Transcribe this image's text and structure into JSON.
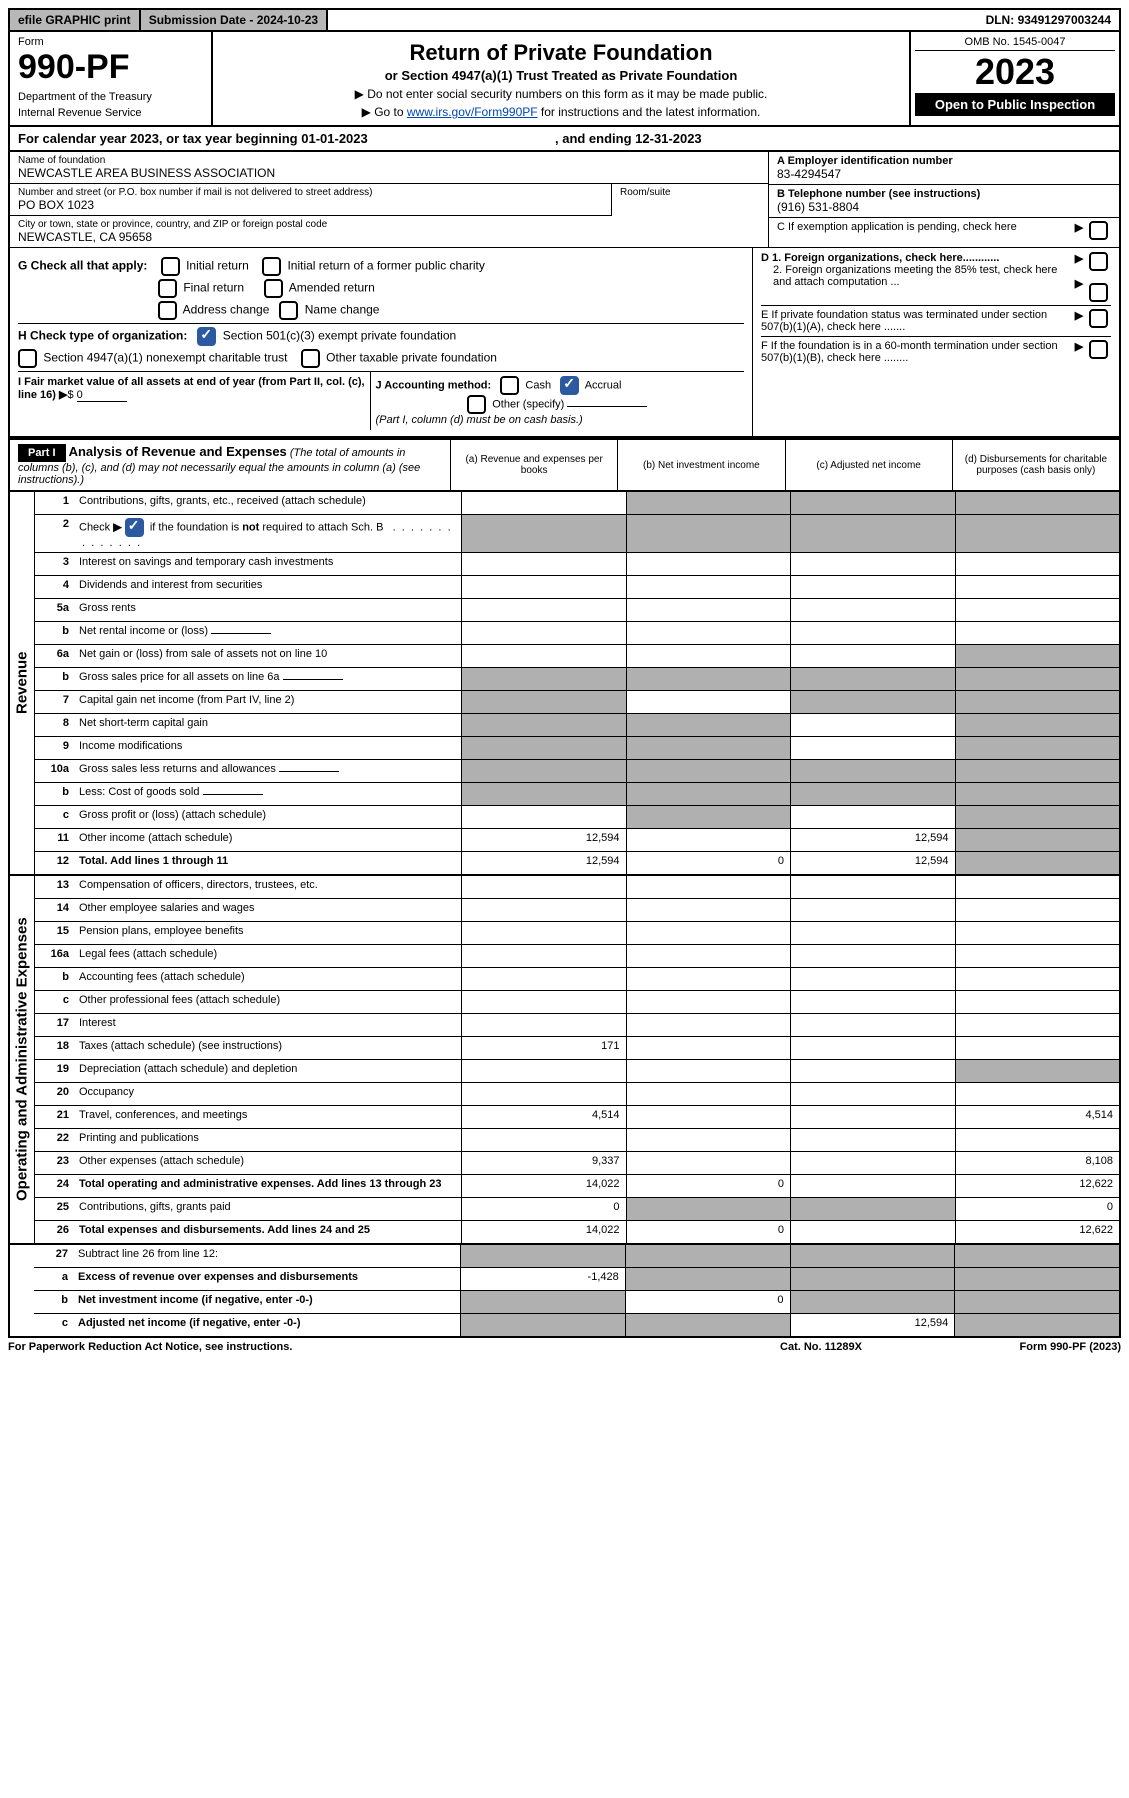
{
  "topbar": {
    "efile": "efile GRAPHIC print",
    "subdate_label": "Submission Date - ",
    "subdate": "2024-10-23",
    "dln_label": "DLN: ",
    "dln": "93491297003244"
  },
  "header": {
    "form": "Form",
    "form_num": "990-PF",
    "dept1": "Department of the Treasury",
    "dept2": "Internal Revenue Service",
    "title": "Return of Private Foundation",
    "subtitle": "or Section 4947(a)(1) Trust Treated as Private Foundation",
    "instr1": "▶ Do not enter social security numbers on this form as it may be made public.",
    "instr2_pre": "▶ Go to ",
    "instr2_link": "www.irs.gov/Form990PF",
    "instr2_post": " for instructions and the latest information.",
    "omb": "OMB No. 1545-0047",
    "year": "2023",
    "open": "Open to Public Inspection"
  },
  "calyear": {
    "pre": "For calendar year 2023, or tax year beginning ",
    "begin": "01-01-2023",
    "mid": " , and ending ",
    "end": "12-31-2023"
  },
  "info": {
    "name_label": "Name of foundation",
    "name": "NEWCASTLE AREA BUSINESS ASSOCIATION",
    "addr_label": "Number and street (or P.O. box number if mail is not delivered to street address)",
    "addr": "PO BOX 1023",
    "room_label": "Room/suite",
    "city_label": "City or town, state or province, country, and ZIP or foreign postal code",
    "city": "NEWCASTLE, CA  95658",
    "a_label": "A Employer identification number",
    "a_val": "83-4294547",
    "b_label": "B Telephone number (see instructions)",
    "b_val": "(916) 531-8804",
    "c_label": "C If exemption application is pending, check here",
    "d1": "D 1. Foreign organizations, check here............",
    "d2": "2. Foreign organizations meeting the 85% test, check here and attach computation ...",
    "e_label": "E  If private foundation status was terminated under section 507(b)(1)(A), check here .......",
    "f_label": "F  If the foundation is in a 60-month termination under section 507(b)(1)(B), check here ........"
  },
  "g": {
    "label": "G Check all that apply:",
    "opts": [
      "Initial return",
      "Initial return of a former public charity",
      "Final return",
      "Amended return",
      "Address change",
      "Name change"
    ]
  },
  "h": {
    "label": "H Check type of organization:",
    "opt1": "Section 501(c)(3) exempt private foundation",
    "opt2": "Section 4947(a)(1) nonexempt charitable trust",
    "opt3": "Other taxable private foundation"
  },
  "i": {
    "label": "I Fair market value of all assets at end of year (from Part II, col. (c), line 16) ",
    "val": "0"
  },
  "j": {
    "label": "J Accounting method:",
    "cash": "Cash",
    "accrual": "Accrual",
    "other": "Other (specify)",
    "note": "(Part I, column (d) must be on cash basis.)"
  },
  "part1": {
    "label": "Part I",
    "title": "Analysis of Revenue and Expenses",
    "note": " (The total of amounts in columns (b), (c), and (d) may not necessarily equal the amounts in column (a) (see instructions).)",
    "col_a": "(a) Revenue and expenses per books",
    "col_b": "(b) Net investment income",
    "col_c": "(c) Adjusted net income",
    "col_d": "(d) Disbursements for charitable purposes (cash basis only)"
  },
  "sides": {
    "revenue": "Revenue",
    "expenses": "Operating and Administrative Expenses"
  },
  "rows": [
    {
      "n": "1",
      "d": "Contributions, gifts, grants, etc., received (attach schedule)",
      "a": "",
      "b": "g",
      "c": "g",
      "dd": "g"
    },
    {
      "n": "2",
      "d": "Check ▶ ☑ if the foundation is not required to attach Sch. B",
      "nb": true
    },
    {
      "n": "3",
      "d": "Interest on savings and temporary cash investments"
    },
    {
      "n": "4",
      "d": "Dividends and interest from securities"
    },
    {
      "n": "5a",
      "d": "Gross rents"
    },
    {
      "n": "b",
      "d": "Net rental income or (loss)",
      "short": true
    },
    {
      "n": "6a",
      "d": "Net gain or (loss) from sale of assets not on line 10",
      "dd": "g"
    },
    {
      "n": "b",
      "d": "Gross sales price for all assets on line 6a",
      "short": true,
      "a": "g",
      "b": "g",
      "c": "g",
      "dd": "g"
    },
    {
      "n": "7",
      "d": "Capital gain net income (from Part IV, line 2)",
      "a": "g",
      "c": "g",
      "dd": "g"
    },
    {
      "n": "8",
      "d": "Net short-term capital gain",
      "a": "g",
      "b": "g",
      "dd": "g"
    },
    {
      "n": "9",
      "d": "Income modifications",
      "a": "g",
      "b": "g",
      "dd": "g"
    },
    {
      "n": "10a",
      "d": "Gross sales less returns and allowances",
      "short": true,
      "a": "g",
      "b": "g",
      "c": "g",
      "dd": "g"
    },
    {
      "n": "b",
      "d": "Less: Cost of goods sold",
      "short": true,
      "a": "g",
      "b": "g",
      "c": "g",
      "dd": "g"
    },
    {
      "n": "c",
      "d": "Gross profit or (loss) (attach schedule)",
      "b": "g",
      "dd": "g"
    },
    {
      "n": "11",
      "d": "Other income (attach schedule)",
      "a": "12,594",
      "c": "12,594",
      "dd": "g"
    },
    {
      "n": "12",
      "d": "Total. Add lines 1 through 11",
      "bold": true,
      "a": "12,594",
      "b": "0",
      "c": "12,594",
      "dd": "g"
    }
  ],
  "exp_rows": [
    {
      "n": "13",
      "d": "Compensation of officers, directors, trustees, etc."
    },
    {
      "n": "14",
      "d": "Other employee salaries and wages"
    },
    {
      "n": "15",
      "d": "Pension plans, employee benefits"
    },
    {
      "n": "16a",
      "d": "Legal fees (attach schedule)"
    },
    {
      "n": "b",
      "d": "Accounting fees (attach schedule)"
    },
    {
      "n": "c",
      "d": "Other professional fees (attach schedule)"
    },
    {
      "n": "17",
      "d": "Interest"
    },
    {
      "n": "18",
      "d": "Taxes (attach schedule) (see instructions)",
      "a": "171"
    },
    {
      "n": "19",
      "d": "Depreciation (attach schedule) and depletion",
      "dd": "g"
    },
    {
      "n": "20",
      "d": "Occupancy"
    },
    {
      "n": "21",
      "d": "Travel, conferences, and meetings",
      "a": "4,514",
      "dd": "4,514"
    },
    {
      "n": "22",
      "d": "Printing and publications"
    },
    {
      "n": "23",
      "d": "Other expenses (attach schedule)",
      "a": "9,337",
      "dd": "8,108"
    },
    {
      "n": "24",
      "d": "Total operating and administrative expenses. Add lines 13 through 23",
      "bold": true,
      "a": "14,022",
      "b": "0",
      "dd": "12,622"
    },
    {
      "n": "25",
      "d": "Contributions, gifts, grants paid",
      "a": "0",
      "b": "g",
      "c": "g",
      "dd": "0"
    },
    {
      "n": "26",
      "d": "Total expenses and disbursements. Add lines 24 and 25",
      "bold": true,
      "a": "14,022",
      "b": "0",
      "dd": "12,622"
    }
  ],
  "bottom_rows": [
    {
      "n": "27",
      "d": "Subtract line 26 from line 12:",
      "a": "g",
      "b": "g",
      "c": "g",
      "dd": "g"
    },
    {
      "n": "a",
      "d": "Excess of revenue over expenses and disbursements",
      "bold": true,
      "a": "-1,428",
      "b": "g",
      "c": "g",
      "dd": "g"
    },
    {
      "n": "b",
      "d": "Net investment income (if negative, enter -0-)",
      "bold": true,
      "a": "g",
      "b": "0",
      "c": "g",
      "dd": "g"
    },
    {
      "n": "c",
      "d": "Adjusted net income (if negative, enter -0-)",
      "bold": true,
      "a": "g",
      "b": "g",
      "c": "12,594",
      "dd": "g"
    }
  ],
  "footer": {
    "left": "For Paperwork Reduction Act Notice, see instructions.",
    "mid": "Cat. No. 11289X",
    "right": "Form 990-PF (2023)"
  }
}
